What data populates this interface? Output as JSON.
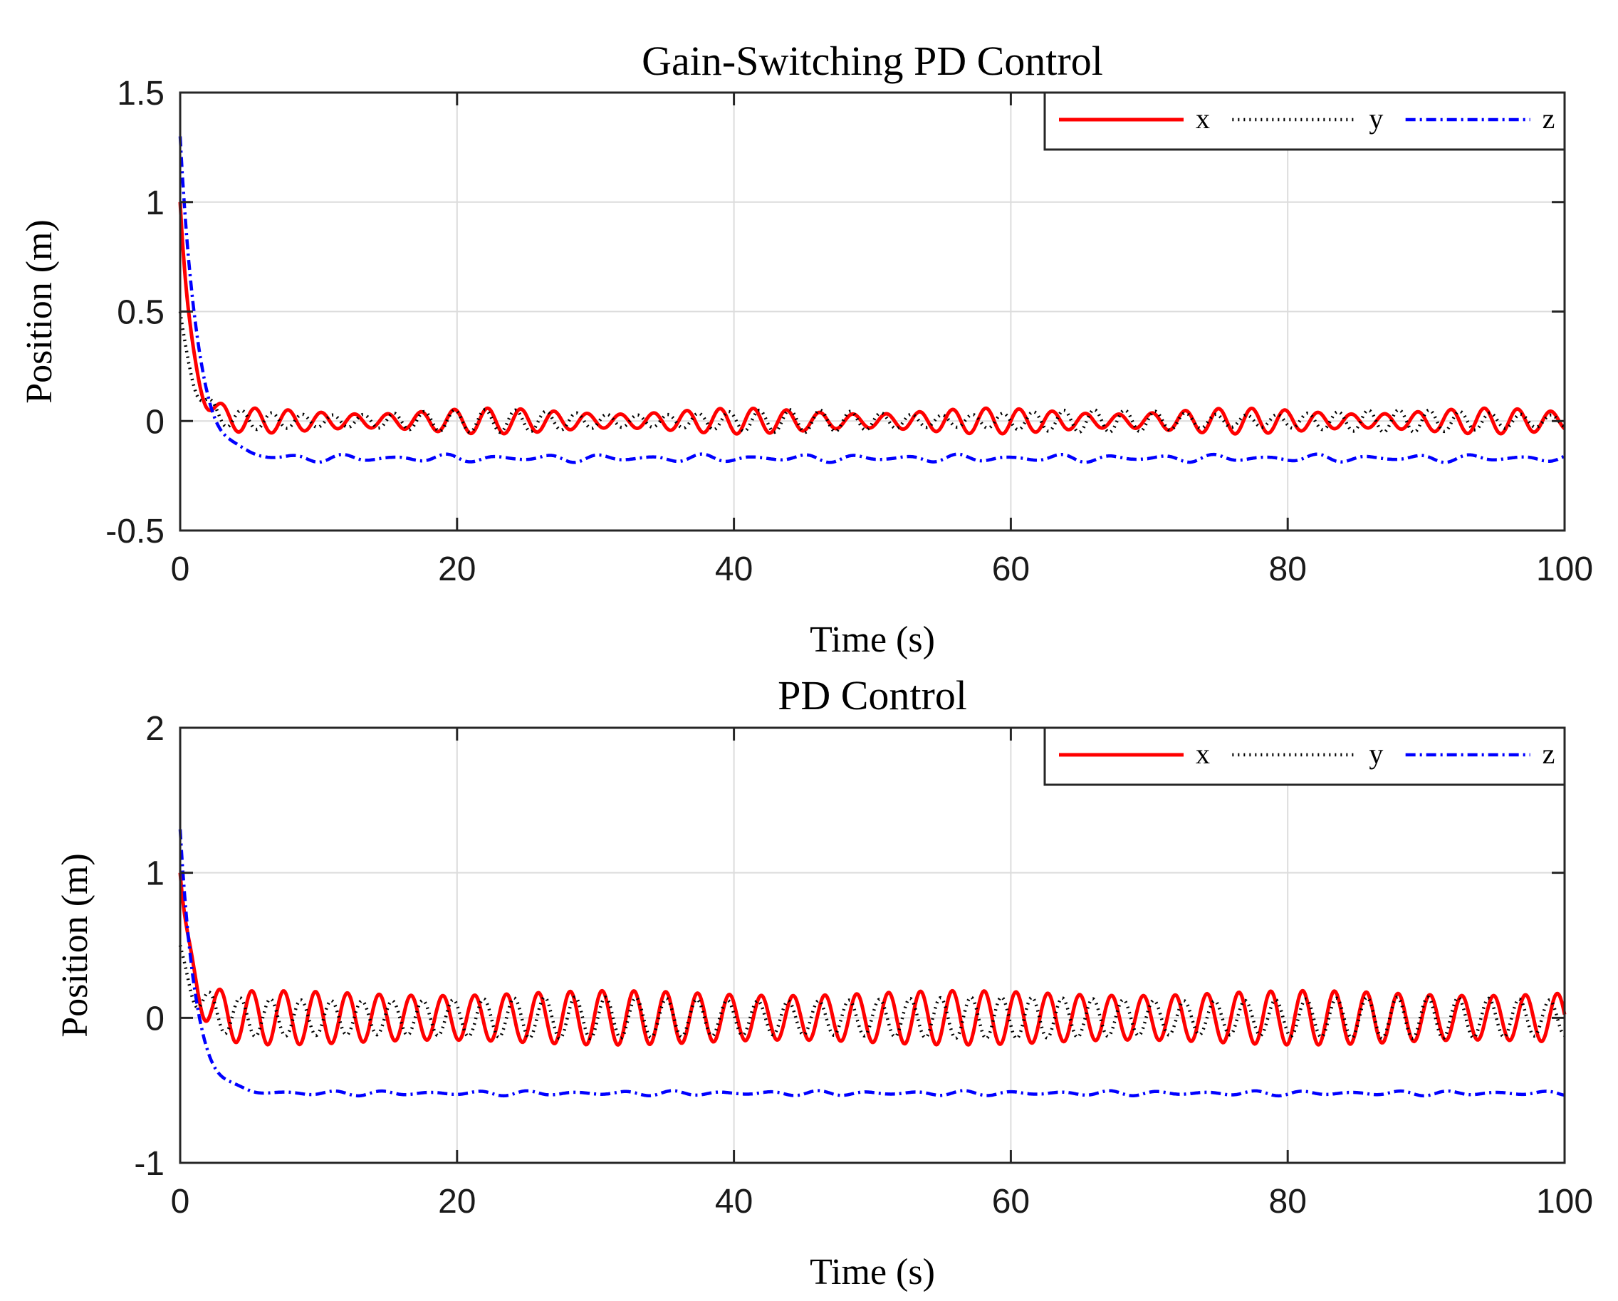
{
  "chart_data": [
    {
      "type": "line",
      "title": "Gain-Switching PD Control",
      "xlabel": "Time (s)",
      "ylabel": "Position (m)",
      "xlim": [
        0,
        100
      ],
      "ylim": [
        -0.5,
        1.5
      ],
      "xticks": [
        0,
        20,
        40,
        60,
        80,
        100
      ],
      "xtick_labels": [
        "0",
        "20",
        "40",
        "60",
        "80",
        "100"
      ],
      "yticks": [
        -0.5,
        0,
        0.5,
        1,
        1.5
      ],
      "ytick_labels": [
        "-0.5",
        "0",
        "0.5",
        "1",
        "1.5"
      ],
      "grid": true,
      "legend": "top-right",
      "series": [
        {
          "name": "x",
          "color": "#ff0000",
          "style": "solid",
          "initial": 1.0,
          "decay": 1.2,
          "offset": 0.0,
          "osc_amplitude": 0.045,
          "osc_period": 2.4,
          "osc_phase": 0.0,
          "amp_variation": 0.3,
          "mod_period": 18
        },
        {
          "name": "y",
          "color": "#000000",
          "style": "dotted",
          "initial": 0.5,
          "decay": 1.0,
          "offset": 0.0,
          "osc_amplitude": 0.04,
          "osc_period": 2.2,
          "osc_phase": 1.5,
          "amp_variation": 0.3,
          "mod_period": 22
        },
        {
          "name": "z",
          "color": "#0000ff",
          "style": "dashdot",
          "initial": 1.3,
          "decay": 0.8,
          "offset": -0.17,
          "osc_amplitude": 0.012,
          "osc_period": 3.7,
          "osc_phase": 0.4,
          "amp_variation": 0.6,
          "mod_period": 9
        }
      ]
    },
    {
      "type": "line",
      "title": "PD Control",
      "xlabel": "Time (s)",
      "ylabel": "Position (m)",
      "xlim": [
        0,
        100
      ],
      "ylim": [
        -1,
        2
      ],
      "xticks": [
        0,
        20,
        40,
        60,
        80,
        100
      ],
      "xtick_labels": [
        "0",
        "20",
        "40",
        "60",
        "80",
        "100"
      ],
      "yticks": [
        -1,
        0,
        1,
        2
      ],
      "ytick_labels": [
        "-1",
        "0",
        "1",
        "2"
      ],
      "grid": true,
      "legend": "top-right",
      "series": [
        {
          "name": "x",
          "color": "#ff0000",
          "style": "solid",
          "initial": 1.0,
          "decay": 1.2,
          "offset": 0.0,
          "osc_amplitude": 0.17,
          "osc_period": 2.3,
          "osc_phase": 0.0,
          "amp_variation": 0.1,
          "mod_period": 25
        },
        {
          "name": "y",
          "color": "#000000",
          "style": "dotted",
          "initial": 0.5,
          "decay": 1.0,
          "offset": 0.0,
          "osc_amplitude": 0.13,
          "osc_period": 2.2,
          "osc_phase": 1.8,
          "amp_variation": 0.1,
          "mod_period": 30
        },
        {
          "name": "z",
          "color": "#0000ff",
          "style": "dashdot",
          "initial": 1.3,
          "decay": 0.9,
          "offset": -0.52,
          "osc_amplitude": 0.012,
          "osc_period": 3.5,
          "osc_phase": 0.5,
          "amp_variation": 0.5,
          "mod_period": 11
        }
      ]
    }
  ]
}
